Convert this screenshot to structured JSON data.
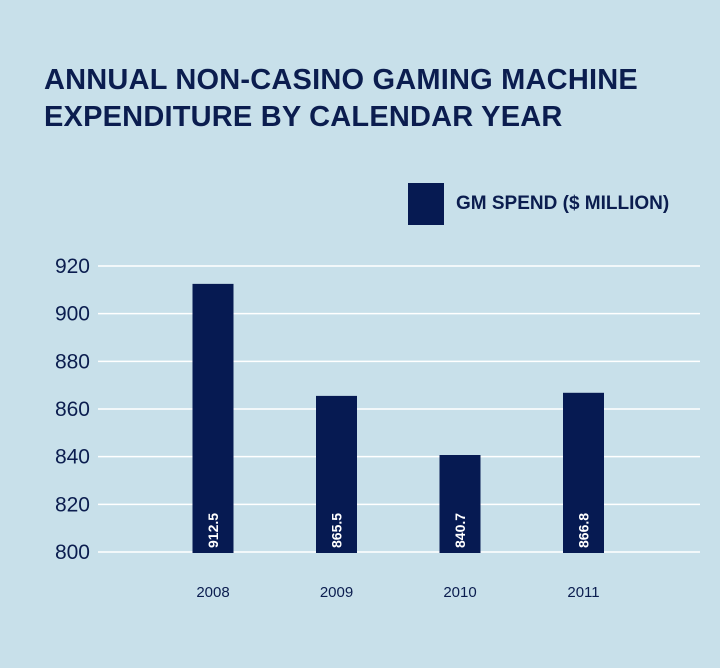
{
  "title_lines": [
    "ANNUAL NON-CASINO GAMING MACHINE",
    "EXPENDITURE BY CALENDAR YEAR"
  ],
  "colors": {
    "background": "#c8e0ea",
    "bar": "#061a52",
    "grid": "#ffffff",
    "text": "#0b1d4f"
  },
  "chart_data": {
    "type": "bar",
    "title": "ANNUAL NON-CASINO GAMING MACHINE EXPENDITURE BY CALENDAR YEAR",
    "categories": [
      "2008",
      "2009",
      "2010",
      "2011"
    ],
    "series": [
      {
        "name": "GM SPEND ($ MILLION)",
        "values": [
          912.5,
          865.5,
          840.7,
          866.8
        ]
      }
    ],
    "value_labels": [
      "912.5",
      "865.5",
      "840.7",
      "866.8"
    ],
    "yticks": [
      800,
      820,
      840,
      860,
      880,
      900,
      920
    ],
    "ylim": [
      800,
      920
    ],
    "xlabel": "",
    "ylabel": "",
    "grid": true,
    "legend_position": "top-right"
  }
}
